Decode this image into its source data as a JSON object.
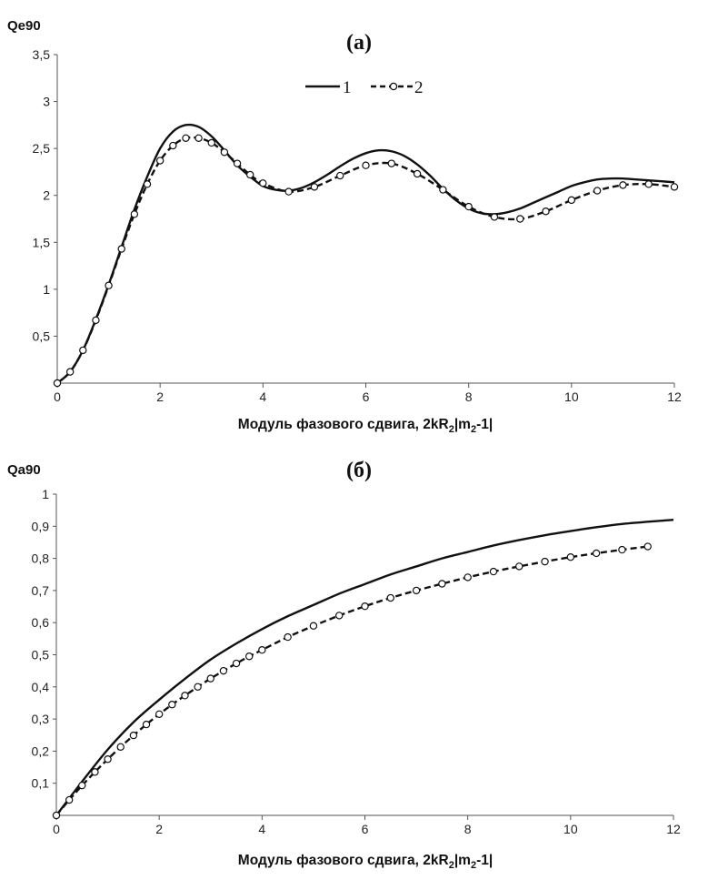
{
  "chart_data": [
    {
      "type": "line",
      "panel": "top",
      "title": "(а)",
      "ylabel": "Qe90",
      "xlabel": "Модуль фазового сдвига, 2kR",
      "xlabel_sub": "2",
      "xlabel_tail1": "|m",
      "xlabel_sub2": "2",
      "xlabel_tail2": "-1|",
      "xlim": [
        0,
        12
      ],
      "ylim": [
        0,
        3.5
      ],
      "xticks": [
        0,
        2,
        4,
        6,
        8,
        10,
        12
      ],
      "xtick_labels": [
        "0",
        "2",
        "4",
        "6",
        "8",
        "10",
        "12"
      ],
      "yticks": [
        0.5,
        1,
        1.5,
        2,
        2.5,
        3,
        3.5
      ],
      "ytick_labels": [
        "0,5",
        "1",
        "1,5",
        "2",
        "2,5",
        "3",
        "3,5"
      ],
      "legend": [
        "1",
        "2"
      ],
      "series": [
        {
          "name": "1",
          "style": "solid",
          "x": [
            0,
            0.25,
            0.5,
            0.75,
            1,
            1.25,
            1.5,
            1.75,
            2,
            2.25,
            2.5,
            2.75,
            3,
            3.25,
            3.5,
            3.75,
            4,
            4.25,
            4.5,
            4.75,
            5,
            5.25,
            5.5,
            5.75,
            6,
            6.25,
            6.5,
            6.75,
            7,
            7.25,
            7.5,
            7.75,
            8,
            8.25,
            8.5,
            8.75,
            9,
            9.25,
            9.5,
            9.75,
            10,
            10.25,
            10.5,
            10.75,
            11,
            11.25,
            11.5,
            11.75,
            12
          ],
          "y": [
            0,
            0.12,
            0.35,
            0.68,
            1.05,
            1.45,
            1.85,
            2.2,
            2.5,
            2.68,
            2.75,
            2.73,
            2.63,
            2.48,
            2.32,
            2.2,
            2.1,
            2.06,
            2.05,
            2.08,
            2.14,
            2.22,
            2.31,
            2.39,
            2.45,
            2.48,
            2.47,
            2.42,
            2.33,
            2.21,
            2.07,
            1.95,
            1.86,
            1.81,
            1.8,
            1.82,
            1.86,
            1.92,
            1.98,
            2.04,
            2.1,
            2.14,
            2.17,
            2.18,
            2.18,
            2.17,
            2.16,
            2.15,
            2.14
          ]
        },
        {
          "name": "2",
          "style": "dashed",
          "marker": "circle",
          "x": [
            0,
            0.25,
            0.5,
            0.75,
            1,
            1.25,
            1.5,
            1.75,
            2,
            2.25,
            2.5,
            2.75,
            3,
            3.25,
            3.5,
            3.75,
            4,
            4.5,
            5,
            5.5,
            6,
            6.5,
            7,
            7.5,
            8,
            8.5,
            9,
            9.5,
            10,
            10.5,
            11,
            11.5,
            12
          ],
          "y": [
            0,
            0.12,
            0.35,
            0.67,
            1.04,
            1.43,
            1.8,
            2.12,
            2.37,
            2.53,
            2.61,
            2.61,
            2.56,
            2.46,
            2.34,
            2.22,
            2.13,
            2.04,
            2.09,
            2.21,
            2.32,
            2.34,
            2.23,
            2.06,
            1.88,
            1.77,
            1.75,
            1.83,
            1.95,
            2.05,
            2.11,
            2.12,
            2.09
          ]
        }
      ]
    },
    {
      "type": "line",
      "panel": "bottom",
      "title": "(б)",
      "ylabel": "Qa90",
      "xlabel": "Модуль фазового сдвига, 2kR",
      "xlabel_sub": "2",
      "xlabel_tail1": "|m",
      "xlabel_sub2": "2",
      "xlabel_tail2": "-1|",
      "xlim": [
        0,
        12
      ],
      "ylim": [
        0,
        1
      ],
      "xticks": [
        0,
        2,
        4,
        6,
        8,
        10,
        12
      ],
      "xtick_labels": [
        "0",
        "2",
        "4",
        "6",
        "8",
        "10",
        "12"
      ],
      "yticks": [
        0.1,
        0.2,
        0.3,
        0.4,
        0.5,
        0.6,
        0.7,
        0.8,
        0.9,
        1
      ],
      "ytick_labels": [
        "0,1",
        "0,2",
        "0,3",
        "0,4",
        "0,5",
        "0,6",
        "0,7",
        "0,8",
        "0,9",
        "1"
      ],
      "series": [
        {
          "name": "1",
          "style": "solid",
          "x": [
            0,
            0.5,
            1,
            1.5,
            2,
            2.5,
            3,
            3.5,
            4,
            4.5,
            5,
            5.5,
            6,
            6.5,
            7,
            7.5,
            8,
            8.5,
            9,
            9.5,
            10,
            10.5,
            11,
            11.5,
            12
          ],
          "y": [
            0,
            0.105,
            0.205,
            0.29,
            0.36,
            0.425,
            0.485,
            0.535,
            0.58,
            0.62,
            0.655,
            0.69,
            0.72,
            0.75,
            0.775,
            0.8,
            0.82,
            0.84,
            0.857,
            0.872,
            0.885,
            0.897,
            0.907,
            0.914,
            0.92
          ]
        },
        {
          "name": "2",
          "style": "dashed",
          "marker": "circle",
          "x": [
            0,
            0.25,
            0.5,
            0.75,
            1,
            1.25,
            1.5,
            1.75,
            2,
            2.25,
            2.5,
            2.75,
            3,
            3.25,
            3.5,
            3.75,
            4,
            4.5,
            5,
            5.5,
            6,
            6.5,
            7,
            7.5,
            8,
            8.5,
            9,
            9.5,
            10,
            10.5,
            11,
            11.5
          ],
          "y": [
            0,
            0.048,
            0.093,
            0.135,
            0.175,
            0.213,
            0.249,
            0.283,
            0.315,
            0.345,
            0.373,
            0.4,
            0.426,
            0.45,
            0.473,
            0.495,
            0.515,
            0.555,
            0.59,
            0.622,
            0.651,
            0.677,
            0.7,
            0.721,
            0.741,
            0.759,
            0.775,
            0.79,
            0.804,
            0.816,
            0.827,
            0.837
          ]
        }
      ]
    }
  ]
}
